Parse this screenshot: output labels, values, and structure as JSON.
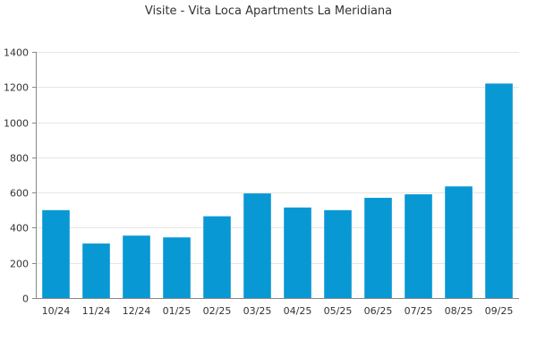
{
  "chart_data": {
    "type": "bar",
    "title": "Visite - Vita Loca Apartments La Meridiana",
    "xlabel": "",
    "ylabel": "",
    "categories": [
      "10/24",
      "11/24",
      "12/24",
      "01/25",
      "02/25",
      "03/25",
      "04/25",
      "05/25",
      "06/25",
      "07/25",
      "08/25",
      "09/25"
    ],
    "values": [
      500,
      310,
      355,
      345,
      465,
      595,
      515,
      500,
      570,
      590,
      635,
      1220
    ],
    "ylim": [
      0,
      1400
    ],
    "yticks": [
      0,
      200,
      400,
      600,
      800,
      1000,
      1200,
      1400
    ],
    "grid": true,
    "legend": "none",
    "bar_color": "#0898d4"
  }
}
